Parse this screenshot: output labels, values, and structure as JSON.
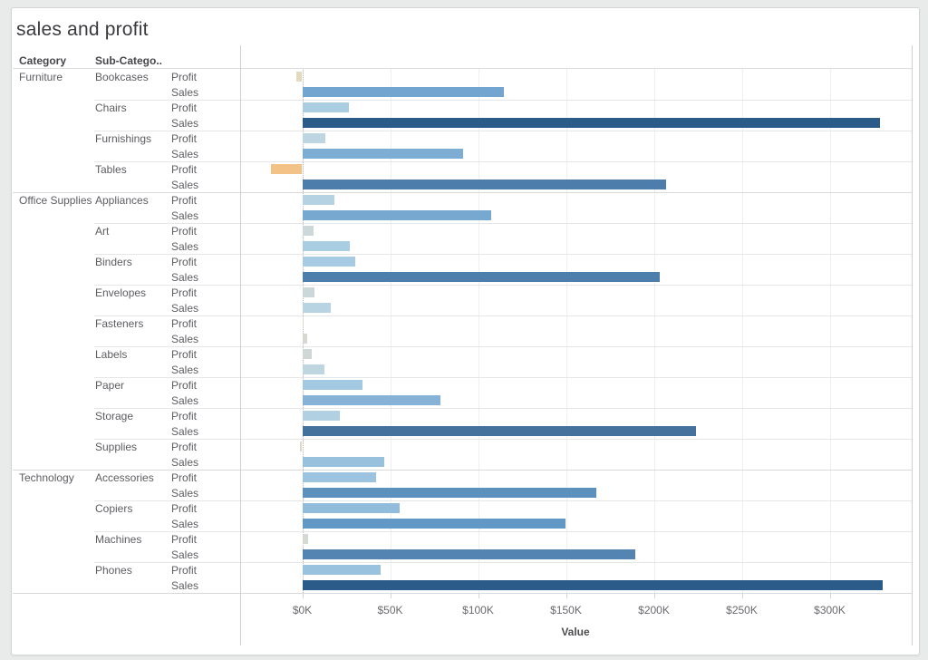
{
  "page": {
    "title": "sales and profit"
  },
  "columns": {
    "category": "Category",
    "subcategory": "Sub-Catego.."
  },
  "axis": {
    "label": "Value",
    "ticks": [
      {
        "label": "$0K",
        "value": 0
      },
      {
        "label": "$50K",
        "value": 50000
      },
      {
        "label": "$100K",
        "value": 100000
      },
      {
        "label": "$150K",
        "value": 150000
      },
      {
        "label": "$200K",
        "value": 200000
      },
      {
        "label": "$250K",
        "value": 250000
      },
      {
        "label": "$300K",
        "value": 300000
      }
    ]
  },
  "chart_data": {
    "type": "bar",
    "orientation": "horizontal",
    "title": "sales and profit",
    "xlabel": "Value",
    "xlim": [
      -35000,
      347000
    ],
    "grid": true,
    "measure_labels": {
      "profit": "Profit",
      "sales": "Sales"
    },
    "categories": [
      {
        "name": "Furniture",
        "subcategories": [
          {
            "name": "Bookcases",
            "profit": -3473,
            "sales": 114880
          },
          {
            "name": "Chairs",
            "profit": 26590,
            "sales": 328449
          },
          {
            "name": "Furnishings",
            "profit": 13059,
            "sales": 91705
          },
          {
            "name": "Tables",
            "profit": -17725,
            "sales": 206966
          }
        ]
      },
      {
        "name": "Office Supplies",
        "subcategories": [
          {
            "name": "Appliances",
            "profit": 18138,
            "sales": 107532
          },
          {
            "name": "Art",
            "profit": 6528,
            "sales": 27119
          },
          {
            "name": "Binders",
            "profit": 30222,
            "sales": 203413
          },
          {
            "name": "Envelopes",
            "profit": 6964,
            "sales": 16476
          },
          {
            "name": "Fasteners",
            "profit": 950,
            "sales": 3024
          },
          {
            "name": "Labels",
            "profit": 5546,
            "sales": 12486
          },
          {
            "name": "Paper",
            "profit": 34054,
            "sales": 78479
          },
          {
            "name": "Storage",
            "profit": 21279,
            "sales": 223844
          },
          {
            "name": "Supplies",
            "profit": -1189,
            "sales": 46674
          }
        ]
      },
      {
        "name": "Technology",
        "subcategories": [
          {
            "name": "Accessories",
            "profit": 41937,
            "sales": 167380
          },
          {
            "name": "Copiers",
            "profit": 55618,
            "sales": 149528
          },
          {
            "name": "Machines",
            "profit": 3385,
            "sales": 189239
          },
          {
            "name": "Phones",
            "profit": 44516,
            "sales": 330007
          }
        ]
      }
    ],
    "color_scale": {
      "description": "diverging orange-gray-blue by value",
      "stops": [
        {
          "value": -18000,
          "color": "#F3C286"
        },
        {
          "value": -4000,
          "color": "#E4D9BE"
        },
        {
          "value": -1000,
          "color": "#DFD8C5"
        },
        {
          "value": 500,
          "color": "#D9D8CB"
        },
        {
          "value": 3500,
          "color": "#D4D9D1"
        },
        {
          "value": 7000,
          "color": "#CBD8DA"
        },
        {
          "value": 13000,
          "color": "#BED6E2"
        },
        {
          "value": 18000,
          "color": "#B5D2E2"
        },
        {
          "value": 27000,
          "color": "#A9CDE2"
        },
        {
          "value": 34000,
          "color": "#A2C9E1"
        },
        {
          "value": 45000,
          "color": "#99C2DF"
        },
        {
          "value": 56000,
          "color": "#91BCDB"
        },
        {
          "value": 78000,
          "color": "#85B2D6"
        },
        {
          "value": 95000,
          "color": "#7CACD3"
        },
        {
          "value": 115000,
          "color": "#72A5CF"
        },
        {
          "value": 150000,
          "color": "#6298C5"
        },
        {
          "value": 167000,
          "color": "#5C90BD"
        },
        {
          "value": 190000,
          "color": "#5384B2"
        },
        {
          "value": 207000,
          "color": "#4D7DAB"
        },
        {
          "value": 224000,
          "color": "#44729D"
        },
        {
          "value": 330000,
          "color": "#2B5B89"
        }
      ]
    }
  }
}
